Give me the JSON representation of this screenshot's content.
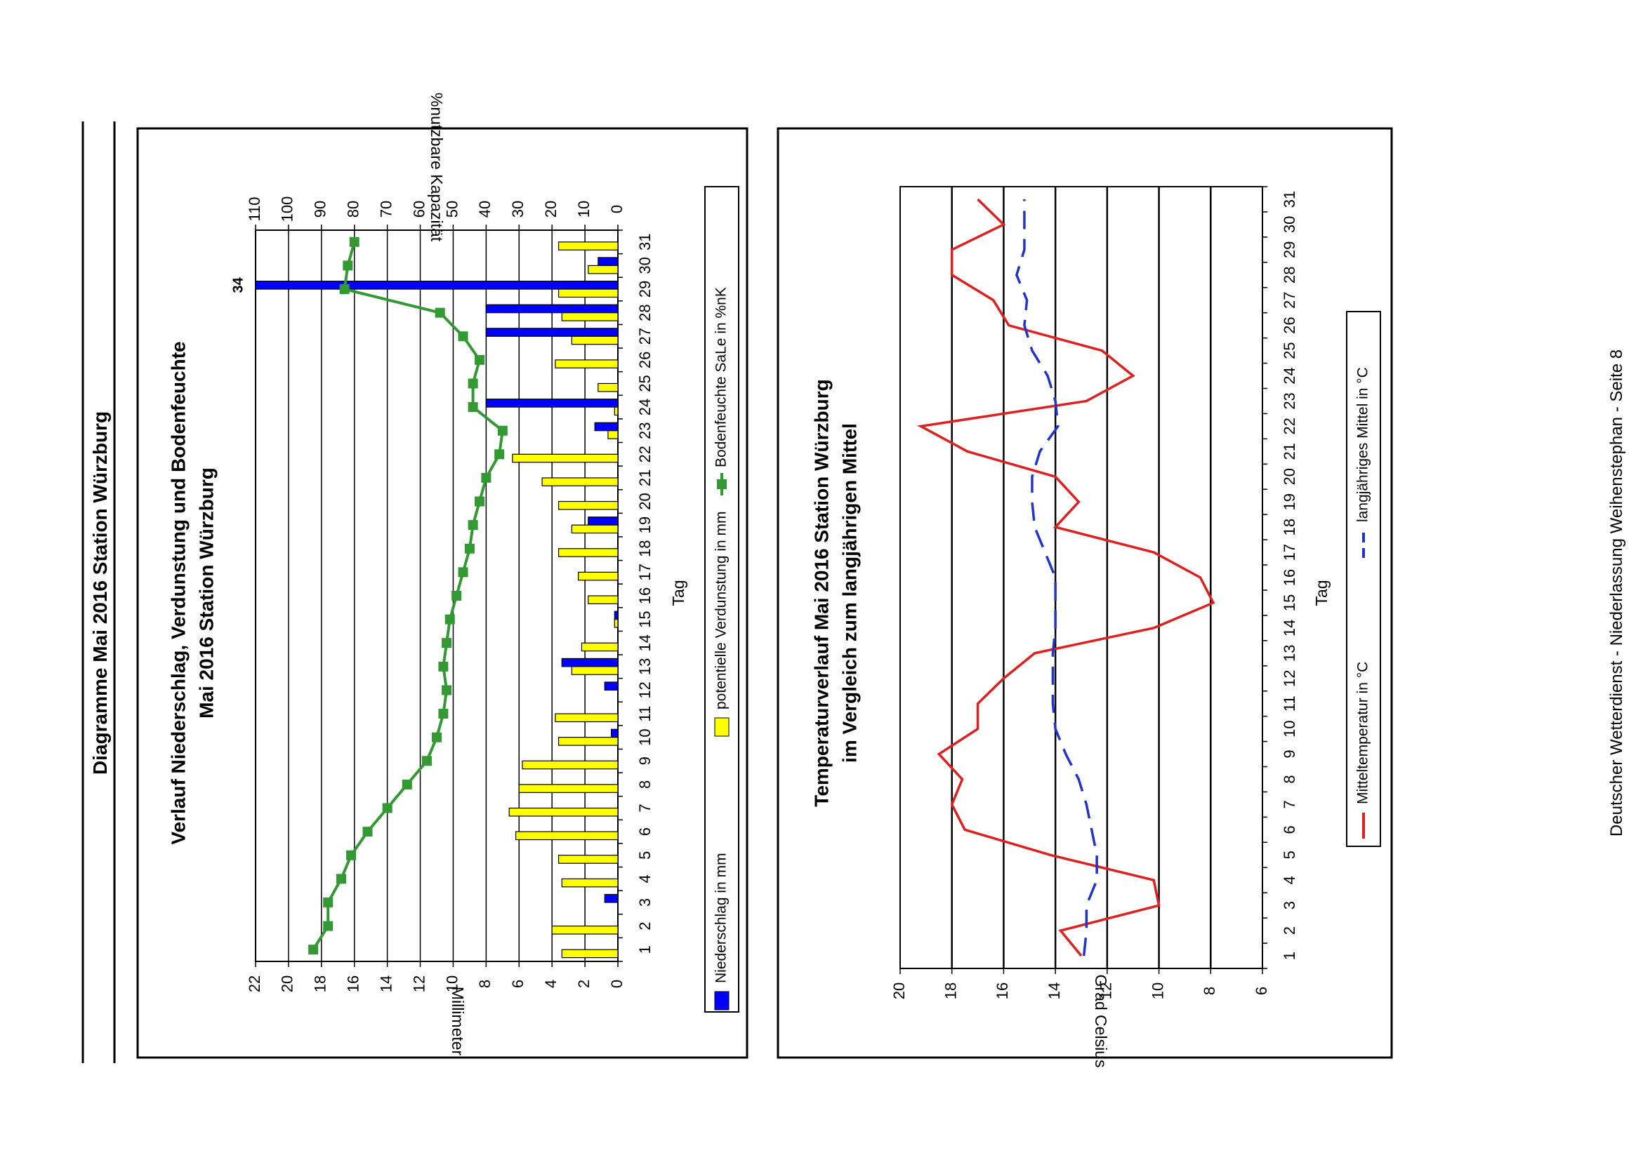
{
  "page": {
    "header_title": "Diagramme Mai 2016 Station Würzburg",
    "footer": "Deutscher Wetterdienst - Niederlassung Weihenstephan - Seite 8"
  },
  "chart_data": [
    {
      "type": "bar",
      "title": "Verlauf Niederschlag, Verdunstung und Bodenfeuchte",
      "subtitle": "Mai 2016 Station Würzburg",
      "xlabel": "Tag",
      "ylabel": "Millimeter",
      "y2label": "%nutzbare Kapazität",
      "categories": [
        1,
        2,
        3,
        4,
        5,
        6,
        7,
        8,
        9,
        10,
        11,
        12,
        13,
        14,
        15,
        16,
        17,
        18,
        19,
        20,
        21,
        22,
        23,
        24,
        25,
        26,
        27,
        28,
        29,
        30,
        31
      ],
      "ylim": [
        0,
        22
      ],
      "y2lim": [
        0,
        110
      ],
      "yticks": [
        0,
        2,
        4,
        6,
        8,
        10,
        12,
        14,
        16,
        18,
        20,
        22
      ],
      "y2ticks": [
        0,
        10,
        20,
        30,
        40,
        50,
        60,
        70,
        80,
        90,
        100,
        110
      ],
      "grid": true,
      "legend_position": "bottom",
      "overflow_label": "34",
      "series": [
        {
          "name": "Niederschlag in mm",
          "kind": "bar",
          "color": "#0000ff",
          "values": [
            0,
            0,
            0.8,
            0,
            0,
            0,
            0,
            0,
            0,
            0.4,
            0,
            0.8,
            3.4,
            0,
            0.2,
            0,
            0,
            0,
            1.8,
            0,
            0,
            0,
            1.4,
            8.0,
            0,
            0,
            8.0,
            8.0,
            34,
            1.2,
            0
          ]
        },
        {
          "name": "potentielle Verdunstung in mm",
          "kind": "bar",
          "color": "#ffff00",
          "values": [
            3.4,
            4.0,
            0,
            3.4,
            3.6,
            6.2,
            6.6,
            6.0,
            5.8,
            3.6,
            3.8,
            0,
            2.8,
            2.2,
            0.2,
            1.8,
            2.4,
            3.6,
            2.8,
            3.6,
            4.6,
            6.4,
            0.6,
            0.2,
            1.2,
            3.8,
            2.8,
            3.4,
            3.6,
            1.8,
            3.6
          ]
        },
        {
          "name": "Bodenfeuchte SaLe in %nK",
          "kind": "line",
          "axis": "y2",
          "color": "#339933",
          "values": [
            92.5,
            88,
            88,
            84,
            81,
            76,
            70,
            64,
            58,
            55,
            53,
            52,
            53,
            52,
            51,
            49,
            47,
            45,
            44,
            42,
            40,
            36,
            35,
            44,
            44,
            42,
            47,
            54,
            83,
            82,
            80
          ]
        }
      ]
    },
    {
      "type": "line",
      "title": "Temperaturverlauf Mai 2016 Station Würzburg",
      "subtitle": "im Vergleich zum langjährigen Mittel",
      "xlabel": "Tag",
      "ylabel": "Grad Celsius",
      "categories": [
        1,
        2,
        3,
        4,
        5,
        6,
        7,
        8,
        9,
        10,
        11,
        12,
        13,
        14,
        15,
        16,
        17,
        18,
        19,
        20,
        21,
        22,
        23,
        24,
        25,
        26,
        27,
        28,
        29,
        30,
        31
      ],
      "ylim": [
        6,
        20
      ],
      "yticks": [
        6,
        8,
        10,
        12,
        14,
        16,
        18,
        20
      ],
      "grid": true,
      "legend_position": "bottom",
      "series": [
        {
          "name": "Mitteltemperatur in °C",
          "color": "#e02020",
          "dash": false,
          "values": [
            13.0,
            13.8,
            10.0,
            10.2,
            14.2,
            17.5,
            18.0,
            17.6,
            18.5,
            17.0,
            17.0,
            16.0,
            14.8,
            10.2,
            7.9,
            8.4,
            10.2,
            14.0,
            13.1,
            14.0,
            17.4,
            19.2,
            12.8,
            11.0,
            12.2,
            15.8,
            16.4,
            18.0,
            18.0,
            16.0,
            17.0
          ]
        },
        {
          "name": "langjähriges Mittel in °C",
          "color": "#2233cc",
          "dash": true,
          "values": [
            12.9,
            12.8,
            12.8,
            12.4,
            12.4,
            12.6,
            12.8,
            13.1,
            13.6,
            14.0,
            14.1,
            14.1,
            14.1,
            14.0,
            14.0,
            14.0,
            14.4,
            14.8,
            14.9,
            14.9,
            14.6,
            13.9,
            14.0,
            14.3,
            14.9,
            15.2,
            15.1,
            15.5,
            15.2,
            15.2,
            15.2
          ]
        }
      ]
    }
  ]
}
